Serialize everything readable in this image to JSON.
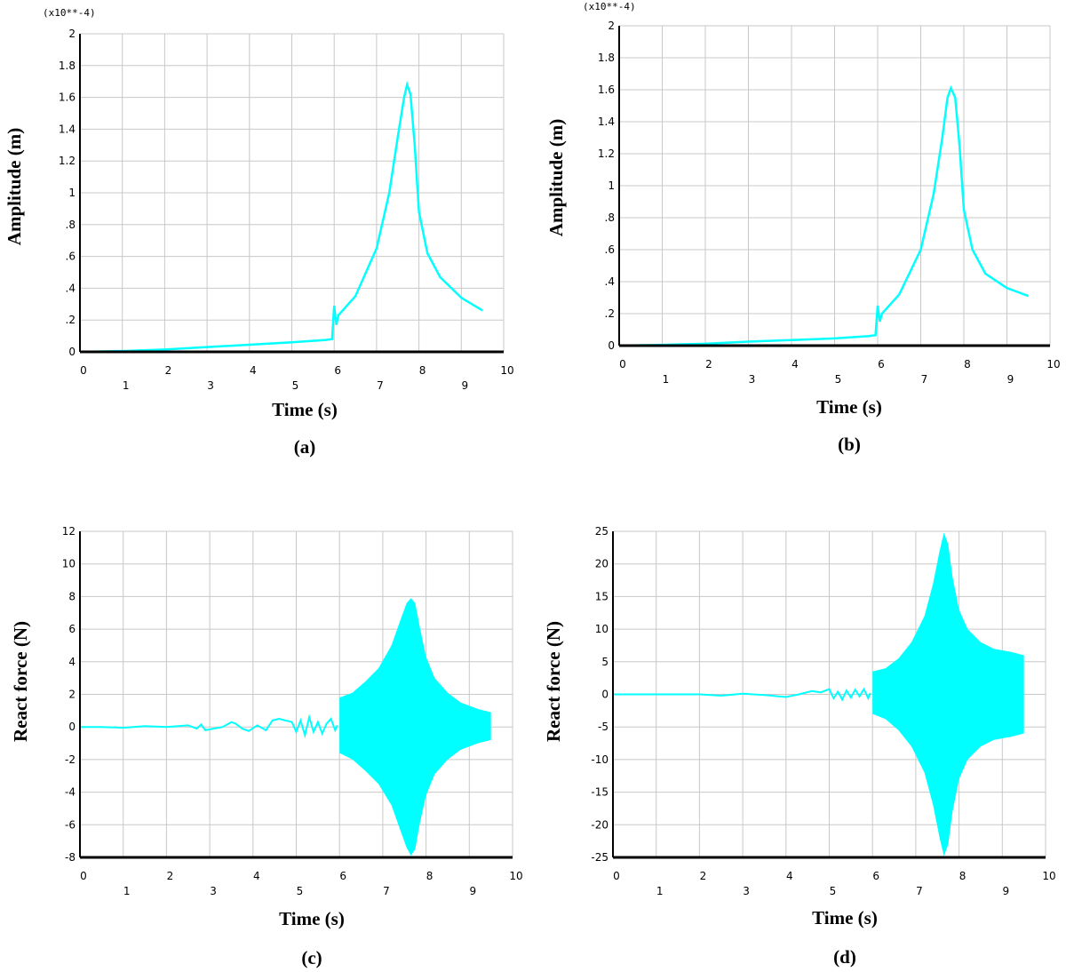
{
  "chart_data": [
    {
      "id": "a",
      "type": "line",
      "caption": "(a)",
      "xlabel": "Time (s)",
      "ylabel": "Amplitude (m)",
      "y_exponent_label": "(x10**-4)",
      "xlim": [
        0,
        10
      ],
      "ylim": [
        0,
        2
      ],
      "x_ticks": [
        "0",
        "1",
        "2",
        "3",
        "4",
        "5",
        "6",
        "7",
        "8",
        "9",
        "10"
      ],
      "y_ticks": [
        "0",
        ".2",
        ".4",
        ".6",
        ".8",
        "1",
        "1.2",
        "1.4",
        "1.6",
        "1.8",
        "2"
      ],
      "grid": true,
      "series": [
        {
          "color": "#00ffff",
          "x": [
            0,
            1,
            2,
            3,
            4,
            5,
            5.8,
            5.95,
            6.0,
            6.05,
            6.1,
            6.5,
            7.0,
            7.3,
            7.5,
            7.65,
            7.72,
            7.8,
            7.9,
            8.0,
            8.2,
            8.5,
            9.0,
            9.5
          ],
          "y": [
            0,
            0.005,
            0.015,
            0.03,
            0.045,
            0.06,
            0.075,
            0.08,
            0.29,
            0.17,
            0.23,
            0.35,
            0.65,
            1.0,
            1.35,
            1.6,
            1.68,
            1.62,
            1.3,
            0.88,
            0.62,
            0.47,
            0.34,
            0.26
          ]
        }
      ]
    },
    {
      "id": "b",
      "type": "line",
      "caption": "(b)",
      "xlabel": "Time (s)",
      "ylabel": "Amplitude (m)",
      "y_exponent_label": "(x10**-4)",
      "xlim": [
        0,
        10
      ],
      "ylim": [
        0,
        2
      ],
      "x_ticks": [
        "0",
        "1",
        "2",
        "3",
        "4",
        "5",
        "6",
        "7",
        "8",
        "9",
        "10"
      ],
      "y_ticks": [
        "0",
        ".2",
        ".4",
        ".6",
        ".8",
        "1",
        "1.2",
        "1.4",
        "1.6",
        "1.8",
        "2"
      ],
      "grid": true,
      "series": [
        {
          "color": "#00ffff",
          "x": [
            0,
            1,
            2,
            3,
            4,
            5,
            5.8,
            5.95,
            6.0,
            6.05,
            6.1,
            6.5,
            7.0,
            7.3,
            7.5,
            7.62,
            7.7,
            7.8,
            7.9,
            8.0,
            8.2,
            8.5,
            9.0,
            9.5
          ],
          "y": [
            0,
            0.005,
            0.012,
            0.025,
            0.035,
            0.045,
            0.06,
            0.065,
            0.25,
            0.15,
            0.2,
            0.32,
            0.6,
            0.95,
            1.3,
            1.55,
            1.61,
            1.55,
            1.25,
            0.85,
            0.6,
            0.45,
            0.36,
            0.31
          ]
        }
      ]
    },
    {
      "id": "c",
      "type": "line",
      "caption": "(c)",
      "xlabel": "Time (s)",
      "ylabel": "React force (N)",
      "xlim": [
        0,
        10
      ],
      "ylim": [
        -8,
        12
      ],
      "x_ticks": [
        "0",
        "1",
        "2",
        "3",
        "4",
        "5",
        "6",
        "7",
        "8",
        "9",
        "10"
      ],
      "y_ticks": [
        "-8",
        "-6",
        "-4",
        "-2",
        "0",
        "2",
        "4",
        "6",
        "8",
        "10",
        "12"
      ],
      "grid": true,
      "series": [
        {
          "color": "#00ffff",
          "x": [
            0,
            0.5,
            1.0,
            1.5,
            2.0,
            2.5,
            2.7,
            2.8,
            2.9,
            3.1,
            3.3,
            3.5,
            3.6,
            3.75,
            3.9,
            4.1,
            4.3,
            4.45,
            4.6,
            4.75,
            4.9,
            5.0,
            5.1,
            5.2,
            5.3,
            5.4,
            5.5,
            5.6,
            5.7,
            5.8,
            5.9,
            5.95
          ],
          "y": [
            0,
            0,
            -0.05,
            0.05,
            0,
            0.1,
            -0.1,
            0.15,
            -0.2,
            -0.1,
            0,
            0.3,
            0.2,
            -0.1,
            -0.25,
            0.1,
            -0.2,
            0.4,
            0.5,
            0.4,
            0.3,
            -0.3,
            0.4,
            -0.5,
            0.6,
            -0.3,
            0.3,
            -0.4,
            0.2,
            0.5,
            -0.2,
            0.1
          ]
        }
      ],
      "band": {
        "color": "#00ffff",
        "x": [
          6.0,
          6.3,
          6.6,
          6.9,
          7.2,
          7.4,
          7.55,
          7.65,
          7.75,
          7.85,
          8.0,
          8.2,
          8.5,
          8.8,
          9.2,
          9.5
        ],
        "upper": [
          1.8,
          2.1,
          2.8,
          3.6,
          5.0,
          6.5,
          7.6,
          7.9,
          7.6,
          6.2,
          4.3,
          3.0,
          2.1,
          1.5,
          1.1,
          0.9
        ],
        "lower": [
          -1.6,
          -2.0,
          -2.7,
          -3.5,
          -4.8,
          -6.3,
          -7.4,
          -7.9,
          -7.5,
          -6.0,
          -4.2,
          -2.9,
          -2.0,
          -1.4,
          -1.0,
          -0.8
        ]
      }
    },
    {
      "id": "d",
      "type": "line",
      "caption": "(d)",
      "xlabel": "Time (s)",
      "ylabel": "React force (N)",
      "xlim": [
        0,
        10
      ],
      "ylim": [
        -25,
        25
      ],
      "x_ticks": [
        "0",
        "1",
        "2",
        "3",
        "4",
        "5",
        "6",
        "7",
        "8",
        "9",
        "10"
      ],
      "y_ticks": [
        "-25",
        "-20",
        "-15",
        "-10",
        "-5",
        "0",
        "5",
        "10",
        "15",
        "20",
        "25"
      ],
      "grid": true,
      "series": [
        {
          "color": "#00ffff",
          "x": [
            0,
            1,
            2,
            2.5,
            3,
            3.5,
            4,
            4.3,
            4.6,
            4.8,
            5.0,
            5.1,
            5.2,
            5.3,
            5.4,
            5.5,
            5.6,
            5.7,
            5.8,
            5.9,
            5.95
          ],
          "y": [
            0,
            0,
            0,
            -0.2,
            0.1,
            -0.1,
            -0.4,
            0,
            0.5,
            0.3,
            0.8,
            -0.6,
            0.4,
            -0.8,
            0.6,
            -0.5,
            0.7,
            -0.3,
            0.8,
            -0.6,
            0.2
          ]
        }
      ],
      "band": {
        "color": "#00ffff",
        "x": [
          6.0,
          6.3,
          6.6,
          6.9,
          7.2,
          7.4,
          7.55,
          7.65,
          7.75,
          7.85,
          8.0,
          8.2,
          8.5,
          8.8,
          9.2,
          9.5
        ],
        "upper": [
          3.5,
          4.0,
          5.5,
          8.0,
          12.0,
          17.0,
          22.0,
          24.8,
          23.0,
          18.0,
          13.0,
          10.0,
          8.0,
          7.0,
          6.5,
          6.0
        ],
        "lower": [
          -3.0,
          -3.8,
          -5.5,
          -8.0,
          -12.0,
          -17.0,
          -22.0,
          -24.8,
          -23.0,
          -18.0,
          -13.0,
          -10.0,
          -8.0,
          -7.0,
          -6.5,
          -6.0
        ]
      }
    }
  ]
}
